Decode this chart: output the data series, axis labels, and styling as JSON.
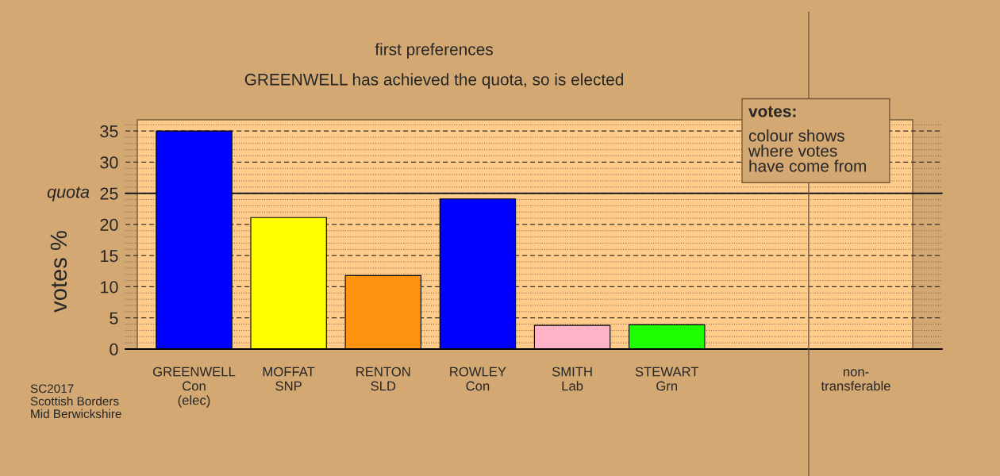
{
  "chart_data": {
    "type": "bar",
    "title": "first preferences",
    "subtitle": "GREENWELL has achieved the quota, so is elected",
    "ylabel": "votes %",
    "legend_title": "votes:",
    "annotations": [
      "colour shows\nwhere votes\nhave come from",
      "SC2017\nScottish Borders\nMid Berwickshire"
    ],
    "categories": [
      "GREENWELL\nCon\n(elec)",
      "MOFFAT\nSNP",
      "RENTON\nSLD",
      "ROWLEY\nCon",
      "SMITH\nLab",
      "STEWART\nGrn",
      null,
      "non-\ntransferable"
    ],
    "values": [
      35,
      21.1,
      11.8,
      24.1,
      3.8,
      3.9,
      null,
      null
    ],
    "colors": [
      "#0000ff",
      "#ffff00",
      "#ff930f",
      "#0000ff",
      "#ffb3c8",
      "#1eff00",
      null,
      null
    ],
    "ylim": [
      0,
      36.8
    ],
    "yticks": [
      0,
      5,
      10,
      15,
      20,
      25,
      30,
      35
    ],
    "grid": true,
    "ref_lines": [
      {
        "axis": "y",
        "value": 25,
        "label": "quota",
        "color": "#000000",
        "line_style": "solid"
      },
      {
        "axis": "x",
        "value": "non-\ntransferable",
        "color": "#6b5a45",
        "line_style": "solid"
      }
    ]
  }
}
